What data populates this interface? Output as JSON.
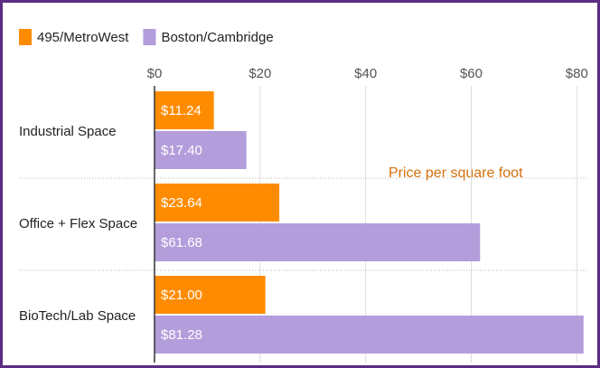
{
  "chart_data": {
    "type": "hbar",
    "annotation": "Price per square foot",
    "categories": [
      "Industrial Space",
      "Office + Flex Space",
      "BioTech/Lab Space"
    ],
    "series": [
      {
        "name": "495/MetroWest",
        "color": "#ff8c00",
        "values": [
          11.24,
          23.64,
          21.0
        ],
        "value_labels": [
          "$11.24",
          "$23.64",
          "$21.00"
        ]
      },
      {
        "name": "Boston/Cambridge",
        "color": "#b39ddb",
        "values": [
          17.4,
          61.68,
          81.28
        ],
        "value_labels": [
          "$17.40",
          "$61.68",
          "$81.28"
        ]
      }
    ],
    "xlim": [
      0,
      82
    ],
    "xticks": [
      {
        "value": 0,
        "label": "$0"
      },
      {
        "value": 20,
        "label": "$20"
      },
      {
        "value": 40,
        "label": "$40"
      },
      {
        "value": 60,
        "label": "$60"
      },
      {
        "value": 80,
        "label": "$80"
      }
    ],
    "grid": true,
    "legend": "top-left"
  }
}
